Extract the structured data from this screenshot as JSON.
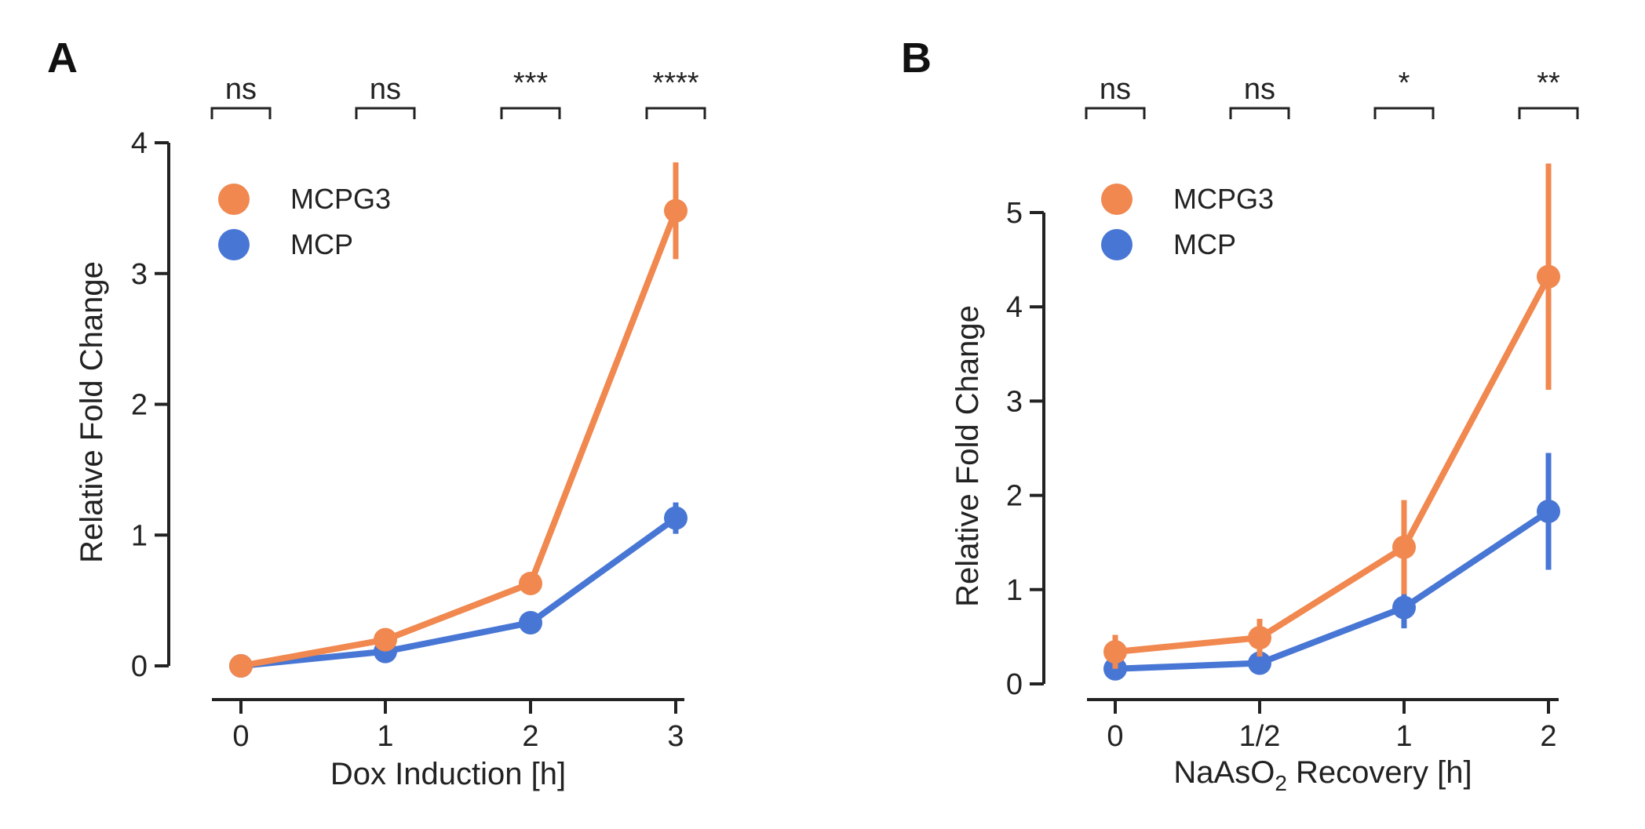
{
  "chart_data": [
    {
      "panel": "A",
      "type": "line",
      "xlabel": "Dox Induction [h]",
      "ylabel": "Relative Fold Change",
      "categories": [
        "0",
        "1",
        "2",
        "3"
      ],
      "ylim": [
        0,
        4
      ],
      "yticks": [
        "0",
        "1",
        "2",
        "3",
        "4"
      ],
      "grid": false,
      "legend_position": "top-left",
      "series": [
        {
          "name": "MCPG3",
          "color": "#F0884F",
          "values": [
            0.0,
            0.2,
            0.63,
            3.48
          ],
          "err": [
            0.02,
            0.06,
            0.05,
            0.37
          ]
        },
        {
          "name": "MCP",
          "color": "#4876D4",
          "values": [
            0.0,
            0.11,
            0.33,
            1.13
          ],
          "err": [
            0.02,
            0.03,
            0.07,
            0.12
          ]
        }
      ],
      "significance": [
        "ns",
        "ns",
        "***",
        "****"
      ]
    },
    {
      "panel": "B",
      "type": "line",
      "xlabel": "NaAsO",
      "xlabel_sub": "2",
      "xlabel_tail": " Recovery [h]",
      "ylabel": "Relative Fold Change",
      "categories": [
        "0",
        "1/2",
        "1",
        "2"
      ],
      "ylim": [
        0,
        5
      ],
      "yticks": [
        "0",
        "1",
        "2",
        "3",
        "4",
        "5"
      ],
      "grid": false,
      "legend_position": "top-left",
      "series": [
        {
          "name": "MCPG3",
          "color": "#F0884F",
          "values": [
            0.34,
            0.49,
            1.45,
            4.32
          ],
          "err": [
            0.18,
            0.2,
            0.5,
            1.2
          ]
        },
        {
          "name": "MCP",
          "color": "#4876D4",
          "values": [
            0.16,
            0.22,
            0.81,
            1.83
          ],
          "err": [
            0.06,
            0.08,
            0.22,
            0.62
          ]
        }
      ],
      "significance": [
        "ns",
        "ns",
        "*",
        "**"
      ]
    }
  ]
}
